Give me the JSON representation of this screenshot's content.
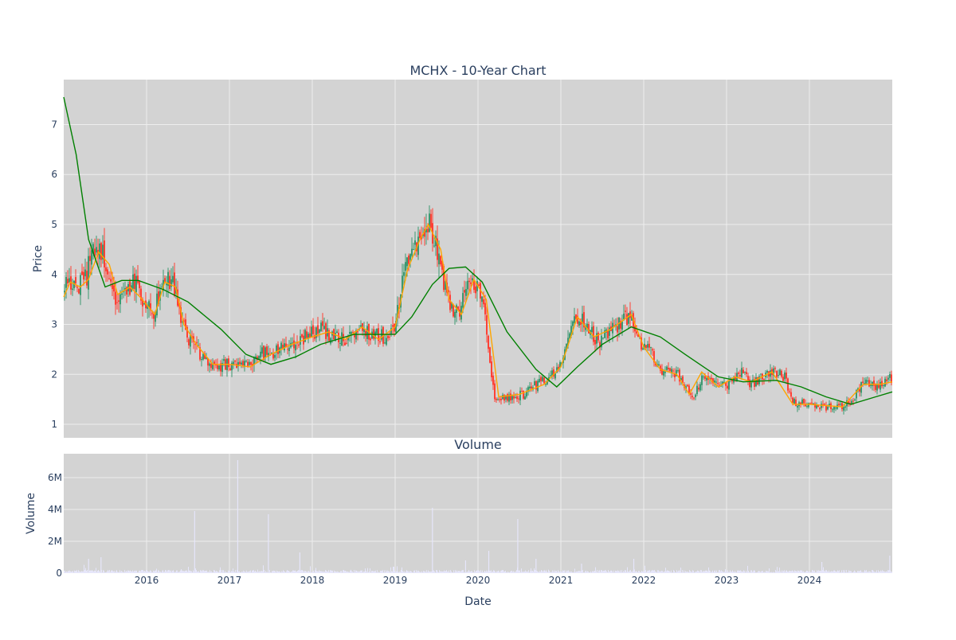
{
  "chart_data": [
    {
      "type": "candlestick",
      "title": "MCHX - 10-Year Chart",
      "ylabel": "Price",
      "ylim": [
        0.73,
        7.9
      ],
      "y_ticks": [
        1,
        2,
        3,
        4,
        5,
        6,
        7
      ],
      "x_ticks": [
        "2016",
        "2017",
        "2018",
        "2019",
        "2020",
        "2021",
        "2022",
        "2023",
        "2024"
      ],
      "grid": true,
      "colors": {
        "increasing": "#3d9970",
        "decreasing": "#ff4136",
        "short_ma": "#ffa500",
        "long_ma": "#008000",
        "background": "#d3d3d3"
      },
      "price_path": [
        [
          2015.0,
          3.7
        ],
        [
          2015.08,
          3.85
        ],
        [
          2015.17,
          3.8
        ],
        [
          2015.27,
          3.9
        ],
        [
          2015.32,
          4.4
        ],
        [
          2015.42,
          4.55
        ],
        [
          2015.55,
          4.1
        ],
        [
          2015.62,
          3.55
        ],
        [
          2015.75,
          3.55
        ],
        [
          2015.85,
          3.85
        ],
        [
          2016.0,
          3.35
        ],
        [
          2016.08,
          3.2
        ],
        [
          2016.2,
          3.9
        ],
        [
          2016.32,
          3.9
        ],
        [
          2016.4,
          3.25
        ],
        [
          2016.5,
          2.7
        ],
        [
          2016.6,
          2.55
        ],
        [
          2016.65,
          2.35
        ],
        [
          2016.8,
          2.15
        ],
        [
          2017.0,
          2.2
        ],
        [
          2017.25,
          2.15
        ],
        [
          2017.35,
          2.4
        ],
        [
          2017.55,
          2.45
        ],
        [
          2017.75,
          2.6
        ],
        [
          2017.92,
          2.75
        ],
        [
          2018.1,
          2.9
        ],
        [
          2018.3,
          2.75
        ],
        [
          2018.5,
          2.7
        ],
        [
          2018.55,
          2.95
        ],
        [
          2018.7,
          2.8
        ],
        [
          2018.9,
          2.75
        ],
        [
          2019.0,
          3.0
        ],
        [
          2019.1,
          3.95
        ],
        [
          2019.2,
          4.4
        ],
        [
          2019.35,
          4.8
        ],
        [
          2019.4,
          5.05
        ],
        [
          2019.5,
          4.6
        ],
        [
          2019.58,
          3.9
        ],
        [
          2019.68,
          3.3
        ],
        [
          2019.78,
          3.25
        ],
        [
          2019.87,
          3.95
        ],
        [
          2020.0,
          3.65
        ],
        [
          2020.08,
          3.25
        ],
        [
          2020.2,
          1.5
        ],
        [
          2020.4,
          1.55
        ],
        [
          2020.55,
          1.6
        ],
        [
          2020.75,
          1.85
        ],
        [
          2020.85,
          1.9
        ],
        [
          2020.95,
          2.1
        ],
        [
          2021.0,
          2.3
        ],
        [
          2021.1,
          2.8
        ],
        [
          2021.18,
          3.2
        ],
        [
          2021.35,
          2.9
        ],
        [
          2021.45,
          2.65
        ],
        [
          2021.6,
          2.85
        ],
        [
          2021.75,
          3.1
        ],
        [
          2021.85,
          3.2
        ],
        [
          2021.9,
          2.75
        ],
        [
          2022.1,
          2.4
        ],
        [
          2022.2,
          2.1
        ],
        [
          2022.35,
          2.1
        ],
        [
          2022.5,
          1.8
        ],
        [
          2022.6,
          1.55
        ],
        [
          2022.72,
          2.0
        ],
        [
          2022.85,
          1.8
        ],
        [
          2023.0,
          1.75
        ],
        [
          2023.15,
          2.1
        ],
        [
          2023.3,
          1.8
        ],
        [
          2023.45,
          1.95
        ],
        [
          2023.55,
          2.05
        ],
        [
          2023.7,
          1.95
        ],
        [
          2023.8,
          1.45
        ],
        [
          2024.0,
          1.4
        ],
        [
          2024.2,
          1.35
        ],
        [
          2024.4,
          1.35
        ],
        [
          2024.55,
          1.55
        ],
        [
          2024.65,
          1.85
        ],
        [
          2024.85,
          1.75
        ],
        [
          2025.0,
          1.95
        ]
      ],
      "short_ma": [
        [
          2015.0,
          3.55
        ],
        [
          2015.08,
          3.85
        ],
        [
          2015.2,
          3.75
        ],
        [
          2015.3,
          3.9
        ],
        [
          2015.42,
          4.45
        ],
        [
          2015.55,
          4.2
        ],
        [
          2015.65,
          3.6
        ],
        [
          2015.8,
          3.75
        ],
        [
          2015.92,
          3.55
        ],
        [
          2016.1,
          3.2
        ],
        [
          2016.22,
          3.85
        ],
        [
          2016.35,
          3.75
        ],
        [
          2016.45,
          3.0
        ],
        [
          2016.6,
          2.6
        ],
        [
          2016.8,
          2.2
        ],
        [
          2017.0,
          2.2
        ],
        [
          2017.25,
          2.15
        ],
        [
          2017.5,
          2.4
        ],
        [
          2017.75,
          2.6
        ],
        [
          2018.0,
          2.75
        ],
        [
          2018.2,
          2.85
        ],
        [
          2018.4,
          2.7
        ],
        [
          2018.6,
          2.95
        ],
        [
          2018.8,
          2.7
        ],
        [
          2019.0,
          2.95
        ],
        [
          2019.15,
          4.1
        ],
        [
          2019.3,
          4.7
        ],
        [
          2019.4,
          5.0
        ],
        [
          2019.55,
          4.5
        ],
        [
          2019.65,
          3.5
        ],
        [
          2019.8,
          3.2
        ],
        [
          2019.95,
          3.9
        ],
        [
          2020.1,
          3.5
        ],
        [
          2020.25,
          1.55
        ],
        [
          2020.5,
          1.6
        ],
        [
          2020.8,
          1.8
        ],
        [
          2021.0,
          2.15
        ],
        [
          2021.2,
          3.15
        ],
        [
          2021.4,
          2.75
        ],
        [
          2021.6,
          2.9
        ],
        [
          2021.85,
          3.2
        ],
        [
          2022.0,
          2.55
        ],
        [
          2022.2,
          2.1
        ],
        [
          2022.4,
          2.0
        ],
        [
          2022.55,
          1.6
        ],
        [
          2022.7,
          2.05
        ],
        [
          2022.9,
          1.75
        ],
        [
          2023.1,
          1.95
        ],
        [
          2023.3,
          1.85
        ],
        [
          2023.55,
          2.05
        ],
        [
          2023.8,
          1.4
        ],
        [
          2024.0,
          1.4
        ],
        [
          2024.4,
          1.35
        ],
        [
          2024.65,
          1.8
        ],
        [
          2024.85,
          1.8
        ],
        [
          2025.0,
          1.85
        ]
      ],
      "long_ma": [
        [
          2015.0,
          7.55
        ],
        [
          2015.15,
          6.4
        ],
        [
          2015.3,
          4.7
        ],
        [
          2015.5,
          3.75
        ],
        [
          2015.7,
          3.88
        ],
        [
          2015.9,
          3.88
        ],
        [
          2016.2,
          3.7
        ],
        [
          2016.5,
          3.45
        ],
        [
          2016.9,
          2.9
        ],
        [
          2017.2,
          2.4
        ],
        [
          2017.5,
          2.2
        ],
        [
          2017.8,
          2.35
        ],
        [
          2018.1,
          2.6
        ],
        [
          2018.5,
          2.8
        ],
        [
          2019.0,
          2.8
        ],
        [
          2019.2,
          3.15
        ],
        [
          2019.45,
          3.8
        ],
        [
          2019.65,
          4.12
        ],
        [
          2019.85,
          4.15
        ],
        [
          2020.05,
          3.85
        ],
        [
          2020.35,
          2.85
        ],
        [
          2020.7,
          2.1
        ],
        [
          2020.95,
          1.75
        ],
        [
          2021.2,
          2.15
        ],
        [
          2021.5,
          2.6
        ],
        [
          2021.85,
          2.95
        ],
        [
          2022.2,
          2.75
        ],
        [
          2022.5,
          2.4
        ],
        [
          2022.9,
          1.95
        ],
        [
          2023.2,
          1.85
        ],
        [
          2023.6,
          1.88
        ],
        [
          2023.9,
          1.75
        ],
        [
          2024.2,
          1.55
        ],
        [
          2024.5,
          1.4
        ],
        [
          2024.8,
          1.55
        ],
        [
          2025.0,
          1.65
        ]
      ]
    },
    {
      "type": "bar",
      "title": "Volume",
      "xlabel": "Date",
      "ylabel": "Volume",
      "ylim": [
        0,
        7500000
      ],
      "y_ticks": [
        0,
        2000000,
        4000000,
        6000000
      ],
      "y_tick_labels": [
        "0",
        "2M",
        "4M",
        "6M"
      ],
      "x_ticks": [
        "2016",
        "2017",
        "2018",
        "2019",
        "2020",
        "2021",
        "2022",
        "2023",
        "2024"
      ],
      "grid": true,
      "colors": {
        "bar": "#e6e6fa",
        "background": "#d3d3d3"
      },
      "spikes": [
        [
          2015.3,
          900000
        ],
        [
          2015.45,
          1000000
        ],
        [
          2016.58,
          3900000
        ],
        [
          2017.1,
          7100000
        ],
        [
          2017.47,
          3700000
        ],
        [
          2017.85,
          1300000
        ],
        [
          2019.45,
          4100000
        ],
        [
          2019.85,
          800000
        ],
        [
          2020.13,
          1400000
        ],
        [
          2020.48,
          3400000
        ],
        [
          2020.7,
          900000
        ],
        [
          2021.25,
          600000
        ],
        [
          2021.88,
          900000
        ],
        [
          2024.15,
          700000
        ],
        [
          2024.97,
          1100000
        ]
      ]
    }
  ]
}
